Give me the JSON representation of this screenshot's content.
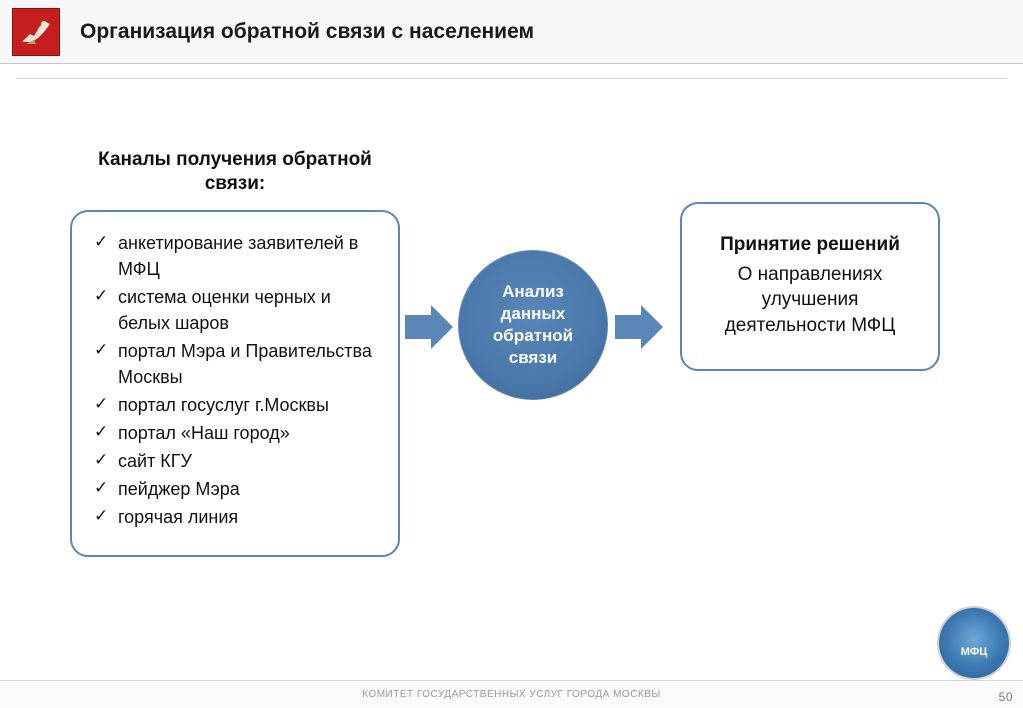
{
  "colors": {
    "arrow": "#5a86b8",
    "circle_fill": "#4a78ab",
    "box_border": "#5a86b8",
    "header_bg": "#f7f7f7",
    "logo_bg": "#c41e1e"
  },
  "header": {
    "title": "Организация обратной связи с населением"
  },
  "diagram": {
    "left": {
      "heading": "Каналы получения обратной связи:",
      "items": [
        "анкетирование заявителей в МФЦ",
        "система оценки черных и белых шаров",
        "портал Мэра и Правительства Москвы",
        "портал госуслуг г.Москвы",
        "портал «Наш город»",
        "сайт КГУ",
        "пейджер Мэра",
        "горячая линия"
      ]
    },
    "center": {
      "label": "Анализ данных обратной связи"
    },
    "right": {
      "title": "Принятие решений",
      "body": "О направлениях улучшения деятельности МФЦ"
    }
  },
  "footer": {
    "text": "КОМИТЕТ ГОСУДАРСТВЕННЫХ УСЛУГ ГОРОДА МОСКВЫ",
    "page": "50",
    "badge": "МФЦ"
  }
}
